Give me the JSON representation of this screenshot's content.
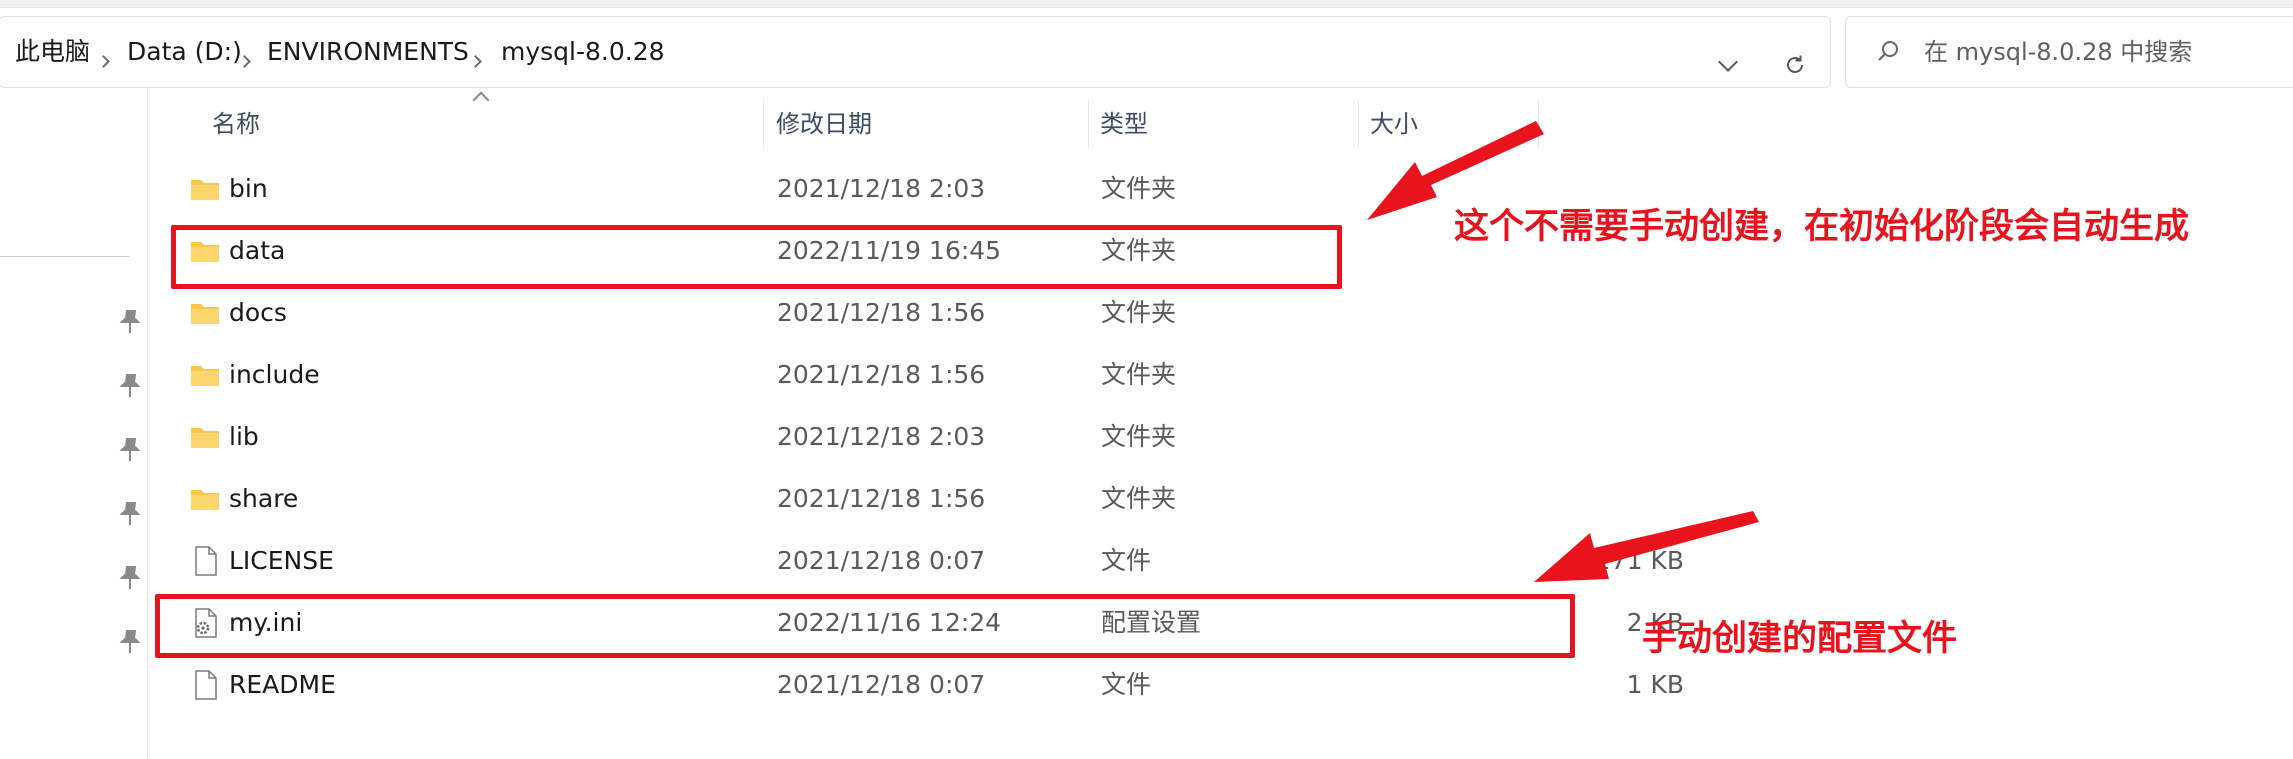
{
  "address_bar": {
    "crumbs": [
      "此电脑",
      "Data (D:)",
      "ENVIRONMENTS",
      "mysql-8.0.28"
    ]
  },
  "search": {
    "placeholder": "在 mysql-8.0.28 中搜索"
  },
  "columns": {
    "name": "名称",
    "date": "修改日期",
    "type": "类型",
    "size": "大小"
  },
  "files": [
    {
      "name": "bin",
      "date": "2021/12/18 2:03",
      "type": "文件夹",
      "size": "",
      "icon": "folder-icon"
    },
    {
      "name": "data",
      "date": "2022/11/19 16:45",
      "type": "文件夹",
      "size": "",
      "icon": "folder-icon"
    },
    {
      "name": "docs",
      "date": "2021/12/18 1:56",
      "type": "文件夹",
      "size": "",
      "icon": "folder-icon"
    },
    {
      "name": "include",
      "date": "2021/12/18 1:56",
      "type": "文件夹",
      "size": "",
      "icon": "folder-icon"
    },
    {
      "name": "lib",
      "date": "2021/12/18 2:03",
      "type": "文件夹",
      "size": "",
      "icon": "folder-icon"
    },
    {
      "name": "share",
      "date": "2021/12/18 1:56",
      "type": "文件夹",
      "size": "",
      "icon": "folder-icon"
    },
    {
      "name": "LICENSE",
      "date": "2021/12/18 0:07",
      "type": "文件",
      "size": "271 KB",
      "icon": "file-icon"
    },
    {
      "name": "my.ini",
      "date": "2022/11/16 12:24",
      "type": "配置设置",
      "size": "2 KB",
      "icon": "settings-file-icon"
    },
    {
      "name": "README",
      "date": "2021/12/18 0:07",
      "type": "文件",
      "size": "1 KB",
      "icon": "file-icon"
    }
  ],
  "annotations": {
    "data_note": "这个不需要手动创建，在初始化阶段会自动生成",
    "ini_note": "手动创建的配置文件"
  },
  "colors": {
    "annotation": "#e8131c",
    "folder": "#f7c64a",
    "header_text": "#3d4b66"
  }
}
